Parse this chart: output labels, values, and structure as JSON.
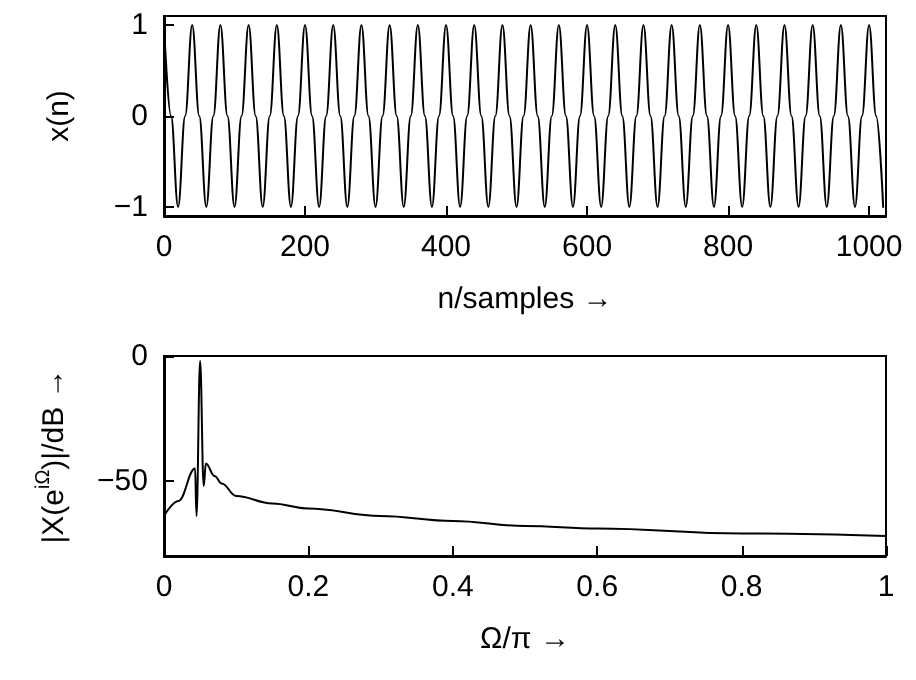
{
  "chart_data": [
    {
      "type": "line",
      "xlabel": "n/samples →",
      "ylabel": "x(n)",
      "xlim": [
        0,
        1024
      ],
      "xticks": [
        0,
        200,
        400,
        600,
        800,
        1000
      ],
      "ylim": [
        -1.1,
        1.1
      ],
      "yticks": [
        -1,
        0,
        1
      ],
      "grid": false,
      "marker": "none",
      "line_style": "solid",
      "series": [
        {
          "color": "#000000",
          "x": [
            0,
            10,
            20,
            30,
            40,
            50,
            60,
            70,
            80,
            90,
            100,
            110,
            120,
            130,
            140,
            150,
            160,
            170,
            180,
            190,
            200,
            210,
            220,
            230,
            240,
            250,
            260,
            270,
            280,
            290,
            300,
            310,
            320,
            330,
            340,
            350,
            360,
            370,
            380,
            390,
            400,
            410,
            420,
            430,
            440,
            450,
            460,
            470,
            480,
            490,
            500,
            510,
            520,
            530,
            540,
            550,
            560,
            570,
            580,
            590,
            600,
            610,
            620,
            630,
            640,
            650,
            660,
            670,
            680,
            690,
            700,
            710,
            720,
            730,
            740,
            750,
            760,
            770,
            780,
            790,
            800,
            810,
            820,
            830,
            840,
            850,
            860,
            870,
            880,
            890,
            900,
            910,
            920,
            930,
            940,
            950,
            960,
            970,
            980,
            990,
            1000,
            1010,
            1020
          ],
          "values": [
            1,
            0,
            -1,
            0,
            1,
            0,
            -1,
            0,
            1,
            0,
            -1,
            0,
            1,
            0,
            -1,
            0,
            1,
            0,
            -1,
            0,
            1,
            0,
            -1,
            0,
            1,
            0,
            -1,
            0,
            1,
            0,
            -1,
            0,
            1,
            0,
            -1,
            0,
            1,
            0,
            -1,
            0,
            1,
            0,
            -1,
            0,
            1,
            0,
            -1,
            0,
            1,
            0,
            -1,
            0,
            1,
            0,
            -1,
            0,
            1,
            0,
            -1,
            0,
            1,
            0,
            -1,
            0,
            1,
            0,
            -1,
            0,
            1,
            0,
            -1,
            0,
            1,
            0,
            -1,
            0,
            1,
            0,
            -1,
            0,
            1,
            0,
            -1,
            0,
            1,
            0,
            -1,
            0,
            1,
            0,
            -1,
            0,
            1,
            0,
            -1,
            0,
            1,
            0,
            -1,
            0,
            1,
            0,
            -1
          ]
        }
      ]
    },
    {
      "type": "line",
      "xlabel": "Ω/π →",
      "ylabel": "|X(e$^{iΩ}$)|/dB →",
      "xlim": [
        0,
        1
      ],
      "xticks": [
        0,
        0.2,
        0.4,
        0.6,
        0.8,
        1
      ],
      "ylim": [
        -80,
        0
      ],
      "yticks": [
        -50,
        0
      ],
      "grid": false,
      "marker": "none",
      "line_style": "solid",
      "series": [
        {
          "color": "#000000",
          "x": [
            0,
            0.02,
            0.043,
            0.045,
            0.05,
            0.055,
            0.058,
            0.07,
            0.08,
            0.1,
            0.15,
            0.2,
            0.3,
            0.4,
            0.5,
            0.6,
            0.8,
            1
          ],
          "values": [
            -64,
            -58,
            -45,
            -64,
            -2,
            -52,
            -43,
            -48,
            -51,
            -56,
            -59,
            -61,
            -64,
            -66,
            -68,
            -69,
            -71,
            -72
          ]
        }
      ]
    }
  ]
}
